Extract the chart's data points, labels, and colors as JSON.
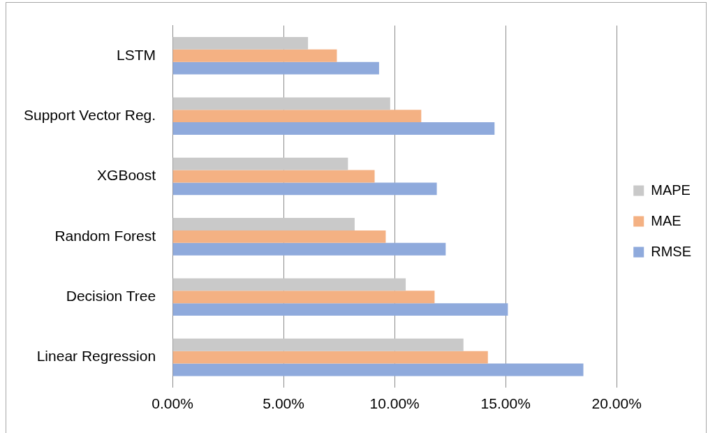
{
  "chart_data": {
    "type": "bar",
    "orientation": "horizontal",
    "categories": [
      "LSTM",
      "Support Vector Reg.",
      "XGBoost",
      "Random Forest",
      "Decision Tree",
      "Linear Regression"
    ],
    "series": [
      {
        "name": "MAPE",
        "color": "#c9c9c9",
        "values": [
          6.1,
          9.8,
          7.9,
          8.2,
          10.5,
          13.1
        ]
      },
      {
        "name": "MAE",
        "color": "#f4b183",
        "values": [
          7.4,
          11.2,
          9.1,
          9.6,
          11.8,
          14.2
        ]
      },
      {
        "name": "RMSE",
        "color": "#8faadc",
        "values": [
          9.3,
          14.5,
          11.9,
          12.3,
          15.1,
          18.5
        ]
      }
    ],
    "xlim": [
      0,
      20
    ],
    "xticks": [
      {
        "value": 0,
        "label": "0.00%"
      },
      {
        "value": 5,
        "label": "5.00%"
      },
      {
        "value": 10,
        "label": "10.00%"
      },
      {
        "value": 15,
        "label": "15.00%"
      },
      {
        "value": 20,
        "label": "20.00%"
      }
    ],
    "grid": "x",
    "legend": "right"
  }
}
